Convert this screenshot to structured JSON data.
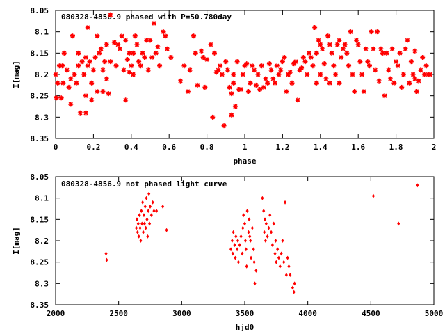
{
  "chart_data": [
    {
      "type": "scatter",
      "title": "080328-4856.9 phased with P=50.780day",
      "xlabel": "phase",
      "ylabel": "I[mag]",
      "xlim": [
        0,
        2
      ],
      "ylim": [
        8.35,
        8.05
      ],
      "y_inverted": true,
      "grid": false,
      "legend": "none",
      "marker_color": "#ff0000",
      "marker": "star",
      "xticks": [
        0,
        0.2,
        0.4,
        0.6,
        0.8,
        1,
        1.2,
        1.4,
        1.6,
        1.8,
        2
      ],
      "xtick_labels": [
        "0",
        "0.2",
        "0.4",
        "0.6",
        "0.8",
        "1",
        "1.2",
        "1.4",
        "1.6",
        "1.8",
        "2"
      ],
      "yticks": [
        8.05,
        8.1,
        8.15,
        8.2,
        8.25,
        8.3,
        8.35
      ],
      "ytick_labels": [
        "8.05",
        "8.1",
        "8.15",
        "8.2",
        "8.25",
        "8.3",
        "8.35"
      ],
      "points": [
        [
          0.0,
          8.2
        ],
        [
          0.005,
          8.255
        ],
        [
          0.01,
          8.22
        ],
        [
          0.02,
          8.18
        ],
        [
          0.03,
          8.255
        ],
        [
          0.035,
          8.18
        ],
        [
          0.04,
          8.22
        ],
        [
          0.045,
          8.15
        ],
        [
          0.06,
          8.19
        ],
        [
          0.07,
          8.23
        ],
        [
          0.08,
          8.21
        ],
        [
          0.08,
          8.27
        ],
        [
          0.09,
          8.11
        ],
        [
          0.1,
          8.2
        ],
        [
          0.11,
          8.22
        ],
        [
          0.12,
          8.15
        ],
        [
          0.12,
          8.18
        ],
        [
          0.13,
          8.29
        ],
        [
          0.14,
          8.17
        ],
        [
          0.15,
          8.2
        ],
        [
          0.16,
          8.29
        ],
        [
          0.16,
          8.25
        ],
        [
          0.16,
          8.16
        ],
        [
          0.17,
          8.09
        ],
        [
          0.17,
          8.18
        ],
        [
          0.18,
          8.17
        ],
        [
          0.19,
          8.26
        ],
        [
          0.19,
          8.22
        ],
        [
          0.2,
          8.19
        ],
        [
          0.21,
          8.16
        ],
        [
          0.22,
          8.11
        ],
        [
          0.22,
          8.24
        ],
        [
          0.23,
          8.15
        ],
        [
          0.24,
          8.14
        ],
        [
          0.25,
          8.19
        ],
        [
          0.25,
          8.24
        ],
        [
          0.26,
          8.17
        ],
        [
          0.27,
          8.13
        ],
        [
          0.27,
          8.21
        ],
        [
          0.28,
          8.245
        ],
        [
          0.29,
          8.17
        ],
        [
          0.29,
          8.06
        ],
        [
          0.31,
          8.125
        ],
        [
          0.32,
          8.18
        ],
        [
          0.33,
          8.13
        ],
        [
          0.34,
          8.14
        ],
        [
          0.35,
          8.11
        ],
        [
          0.36,
          8.19
        ],
        [
          0.37,
          8.12
        ],
        [
          0.37,
          8.26
        ],
        [
          0.38,
          8.165
        ],
        [
          0.39,
          8.15
        ],
        [
          0.39,
          8.195
        ],
        [
          0.4,
          8.18
        ],
        [
          0.41,
          8.15
        ],
        [
          0.41,
          8.2
        ],
        [
          0.42,
          8.11
        ],
        [
          0.43,
          8.13
        ],
        [
          0.44,
          8.17
        ],
        [
          0.45,
          8.18
        ],
        [
          0.46,
          8.15
        ],
        [
          0.47,
          8.16
        ],
        [
          0.48,
          8.12
        ],
        [
          0.49,
          8.19
        ],
        [
          0.5,
          8.12
        ],
        [
          0.51,
          8.16
        ],
        [
          0.52,
          8.08
        ],
        [
          0.53,
          8.15
        ],
        [
          0.54,
          8.135
        ],
        [
          0.55,
          8.18
        ],
        [
          0.57,
          8.1
        ],
        [
          0.58,
          8.11
        ],
        [
          0.59,
          8.14
        ],
        [
          0.61,
          8.16
        ],
        [
          0.66,
          8.215
        ],
        [
          0.68,
          8.18
        ],
        [
          0.7,
          8.24
        ],
        [
          0.71,
          8.19
        ],
        [
          0.73,
          8.11
        ],
        [
          0.74,
          8.15
        ],
        [
          0.75,
          8.225
        ],
        [
          0.77,
          8.145
        ],
        [
          0.78,
          8.16
        ],
        [
          0.79,
          8.23
        ],
        [
          0.8,
          8.165
        ],
        [
          0.82,
          8.13
        ],
        [
          0.83,
          8.3
        ],
        [
          0.84,
          8.15
        ],
        [
          0.85,
          8.195
        ],
        [
          0.86,
          8.19
        ],
        [
          0.87,
          8.18
        ],
        [
          0.88,
          8.2
        ],
        [
          0.89,
          8.32
        ],
        [
          0.9,
          8.17
        ],
        [
          0.91,
          8.19
        ],
        [
          0.92,
          8.23
        ],
        [
          0.93,
          8.245
        ],
        [
          0.93,
          8.295
        ],
        [
          0.94,
          8.2
        ],
        [
          0.94,
          8.22
        ],
        [
          0.95,
          8.275
        ],
        [
          0.96,
          8.17
        ],
        [
          0.97,
          8.235
        ],
        [
          0.98,
          8.235
        ],
        [
          0.99,
          8.2
        ],
        [
          1.0,
          8.18
        ],
        [
          1.01,
          8.175
        ],
        [
          1.02,
          8.24
        ],
        [
          1.03,
          8.22
        ],
        [
          1.04,
          8.18
        ],
        [
          1.05,
          8.19
        ],
        [
          1.06,
          8.225
        ],
        [
          1.07,
          8.2
        ],
        [
          1.08,
          8.235
        ],
        [
          1.09,
          8.18
        ],
        [
          1.1,
          8.23
        ],
        [
          1.11,
          8.21
        ],
        [
          1.12,
          8.22
        ],
        [
          1.13,
          8.175
        ],
        [
          1.14,
          8.19
        ],
        [
          1.15,
          8.21
        ],
        [
          1.16,
          8.22
        ],
        [
          1.17,
          8.18
        ],
        [
          1.18,
          8.2
        ],
        [
          1.19,
          8.19
        ],
        [
          1.2,
          8.17
        ],
        [
          1.21,
          8.16
        ],
        [
          1.22,
          8.24
        ],
        [
          1.23,
          8.2
        ],
        [
          1.24,
          8.195
        ],
        [
          1.25,
          8.22
        ],
        [
          1.26,
          8.175
        ],
        [
          1.27,
          8.17
        ],
        [
          1.28,
          8.26
        ],
        [
          1.29,
          8.19
        ],
        [
          1.3,
          8.185
        ],
        [
          1.31,
          8.16
        ],
        [
          1.32,
          8.17
        ],
        [
          1.33,
          8.2
        ],
        [
          1.34,
          8.15
        ],
        [
          1.35,
          8.16
        ],
        [
          1.36,
          8.18
        ],
        [
          1.37,
          8.09
        ],
        [
          1.38,
          8.15
        ],
        [
          1.38,
          8.22
        ],
        [
          1.39,
          8.12
        ],
        [
          1.4,
          8.13
        ],
        [
          1.4,
          8.2
        ],
        [
          1.41,
          8.14
        ],
        [
          1.42,
          8.175
        ],
        [
          1.43,
          8.21
        ],
        [
          1.44,
          8.11
        ],
        [
          1.45,
          8.13
        ],
        [
          1.45,
          8.22
        ],
        [
          1.46,
          8.15
        ],
        [
          1.47,
          8.18
        ],
        [
          1.48,
          8.2
        ],
        [
          1.49,
          8.13
        ],
        [
          1.5,
          8.12
        ],
        [
          1.5,
          8.22
        ],
        [
          1.51,
          8.16
        ],
        [
          1.52,
          8.14
        ],
        [
          1.53,
          8.13
        ],
        [
          1.54,
          8.15
        ],
        [
          1.55,
          8.18
        ],
        [
          1.56,
          8.1
        ],
        [
          1.57,
          8.2
        ],
        [
          1.58,
          8.24
        ],
        [
          1.59,
          8.12
        ],
        [
          1.6,
          8.13
        ],
        [
          1.61,
          8.17
        ],
        [
          1.62,
          8.2
        ],
        [
          1.63,
          8.24
        ],
        [
          1.64,
          8.14
        ],
        [
          1.65,
          8.17
        ],
        [
          1.66,
          8.18
        ],
        [
          1.67,
          8.1
        ],
        [
          1.68,
          8.14
        ],
        [
          1.69,
          8.19
        ],
        [
          1.7,
          8.1
        ],
        [
          1.71,
          8.215
        ],
        [
          1.72,
          8.14
        ],
        [
          1.73,
          8.15
        ],
        [
          1.74,
          8.25
        ],
        [
          1.75,
          8.15
        ],
        [
          1.76,
          8.19
        ],
        [
          1.77,
          8.21
        ],
        [
          1.78,
          8.14
        ],
        [
          1.79,
          8.22
        ],
        [
          1.8,
          8.17
        ],
        [
          1.81,
          8.18
        ],
        [
          1.82,
          8.15
        ],
        [
          1.83,
          8.23
        ],
        [
          1.84,
          8.2
        ],
        [
          1.85,
          8.14
        ],
        [
          1.86,
          8.12
        ],
        [
          1.87,
          8.22
        ],
        [
          1.88,
          8.17
        ],
        [
          1.89,
          8.2
        ],
        [
          1.9,
          8.21
        ],
        [
          1.9,
          8.145
        ],
        [
          1.91,
          8.24
        ],
        [
          1.92,
          8.215
        ],
        [
          1.93,
          8.19
        ],
        [
          1.94,
          8.16
        ],
        [
          1.95,
          8.2
        ],
        [
          1.96,
          8.18
        ],
        [
          1.97,
          8.2
        ],
        [
          1.98,
          8.2
        ]
      ]
    },
    {
      "type": "scatter",
      "title": "080328-4856.9 not phased light curve",
      "xlabel": "hjd0",
      "ylabel": "I[mag]",
      "xlim": [
        2000,
        5000
      ],
      "ylim": [
        8.35,
        8.05
      ],
      "y_inverted": true,
      "grid": false,
      "legend": "none",
      "marker_color": "#ff0000",
      "marker": "diamond",
      "xticks": [
        2000,
        2500,
        3000,
        3500,
        4000,
        4500,
        5000
      ],
      "xtick_labels": [
        "2000",
        "2500",
        "3000",
        "3500",
        "4000",
        "4500",
        "5000"
      ],
      "yticks": [
        8.05,
        8.1,
        8.15,
        8.2,
        8.25,
        8.3,
        8.35
      ],
      "ytick_labels": [
        "8.05",
        "8.1",
        "8.15",
        "8.2",
        "8.25",
        "8.3",
        "8.35"
      ],
      "points": [
        [
          2400,
          8.23
        ],
        [
          2405,
          8.245
        ],
        [
          2640,
          8.17
        ],
        [
          2645,
          8.15
        ],
        [
          2650,
          8.18
        ],
        [
          2655,
          8.16
        ],
        [
          2660,
          8.19
        ],
        [
          2665,
          8.14
        ],
        [
          2670,
          8.17
        ],
        [
          2675,
          8.2
        ],
        [
          2680,
          8.13
        ],
        [
          2685,
          8.16
        ],
        [
          2690,
          8.11
        ],
        [
          2695,
          8.18
        ],
        [
          2700,
          8.14
        ],
        [
          2705,
          8.16
        ],
        [
          2710,
          8.12
        ],
        [
          2715,
          8.17
        ],
        [
          2720,
          8.1
        ],
        [
          2725,
          8.15
        ],
        [
          2730,
          8.19
        ],
        [
          2735,
          8.13
        ],
        [
          2740,
          8.09
        ],
        [
          2745,
          8.16
        ],
        [
          2750,
          8.12
        ],
        [
          2760,
          8.14
        ],
        [
          2770,
          8.11
        ],
        [
          2780,
          8.13
        ],
        [
          2800,
          8.13
        ],
        [
          2850,
          8.12
        ],
        [
          2880,
          8.175
        ],
        [
          3390,
          8.22
        ],
        [
          3400,
          8.2
        ],
        [
          3405,
          8.23
        ],
        [
          3410,
          8.18
        ],
        [
          3420,
          8.21
        ],
        [
          3425,
          8.24
        ],
        [
          3430,
          8.19
        ],
        [
          3440,
          8.22
        ],
        [
          3445,
          8.2
        ],
        [
          3450,
          8.25
        ],
        [
          3460,
          8.21
        ],
        [
          3470,
          8.19
        ],
        [
          3480,
          8.23
        ],
        [
          3485,
          8.17
        ],
        [
          3490,
          8.14
        ],
        [
          3500,
          8.16
        ],
        [
          3505,
          8.2
        ],
        [
          3510,
          8.22
        ],
        [
          3515,
          8.26
        ],
        [
          3520,
          8.13
        ],
        [
          3530,
          8.18
        ],
        [
          3535,
          8.15
        ],
        [
          3540,
          8.19
        ],
        [
          3545,
          8.2
        ],
        [
          3550,
          8.24
        ],
        [
          3560,
          8.17
        ],
        [
          3570,
          8.22
        ],
        [
          3575,
          8.25
        ],
        [
          3580,
          8.3
        ],
        [
          3590,
          8.27
        ],
        [
          3640,
          8.1
        ],
        [
          3650,
          8.13
        ],
        [
          3655,
          8.18
        ],
        [
          3660,
          8.15
        ],
        [
          3665,
          8.2
        ],
        [
          3670,
          8.16
        ],
        [
          3680,
          8.19
        ],
        [
          3690,
          8.17
        ],
        [
          3700,
          8.14
        ],
        [
          3710,
          8.18
        ],
        [
          3720,
          8.21
        ],
        [
          3730,
          8.16
        ],
        [
          3740,
          8.23
        ],
        [
          3745,
          8.2
        ],
        [
          3750,
          8.25
        ],
        [
          3760,
          8.22
        ],
        [
          3770,
          8.24
        ],
        [
          3780,
          8.26
        ],
        [
          3790,
          8.23
        ],
        [
          3800,
          8.2
        ],
        [
          3810,
          8.25
        ],
        [
          3820,
          8.11
        ],
        [
          3830,
          8.28
        ],
        [
          3840,
          8.24
        ],
        [
          3850,
          8.26
        ],
        [
          3860,
          8.28
        ],
        [
          3880,
          8.31
        ],
        [
          3890,
          8.32
        ],
        [
          3895,
          8.3
        ],
        [
          4520,
          8.095
        ],
        [
          4720,
          8.16
        ],
        [
          4870,
          8.07
        ]
      ]
    }
  ]
}
